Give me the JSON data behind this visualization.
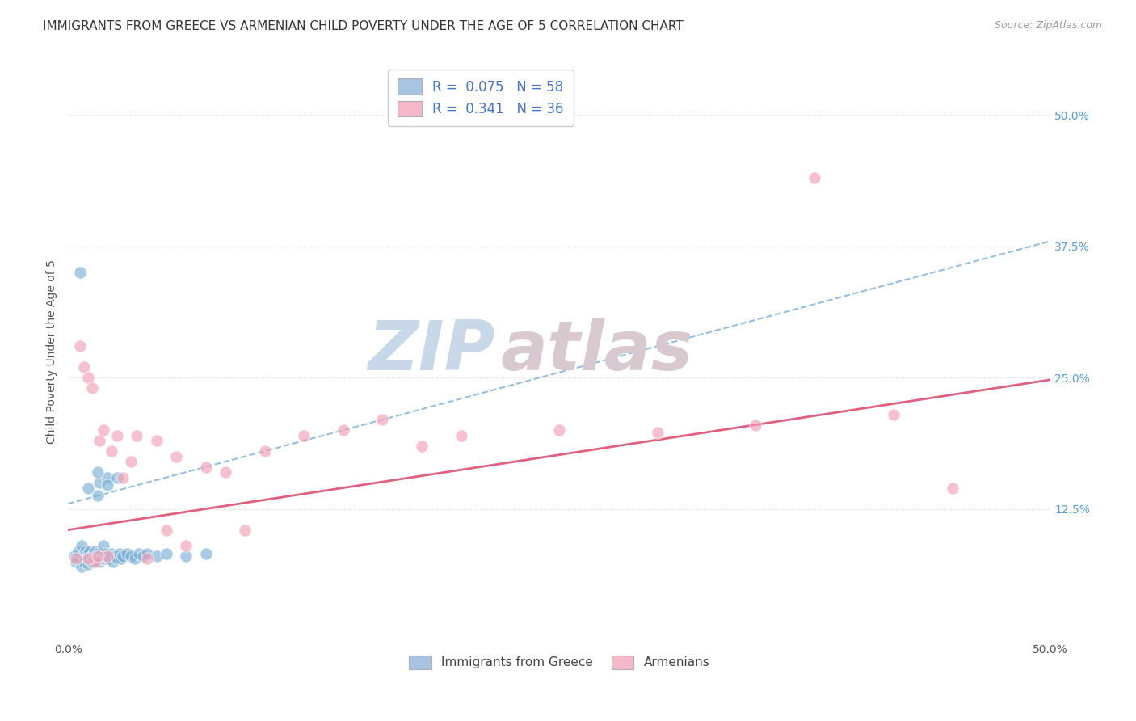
{
  "title": "IMMIGRANTS FROM GREECE VS ARMENIAN CHILD POVERTY UNDER THE AGE OF 5 CORRELATION CHART",
  "source": "Source: ZipAtlas.com",
  "ylabel": "Child Poverty Under the Age of 5",
  "xlim": [
    0.0,
    0.5
  ],
  "ylim": [
    0.0,
    0.55
  ],
  "xticks": [
    0.0,
    0.1,
    0.2,
    0.3,
    0.4,
    0.5
  ],
  "xticklabels": [
    "0.0%",
    "",
    "",
    "",
    "",
    "50.0%"
  ],
  "yticks": [
    0.0,
    0.125,
    0.25,
    0.375,
    0.5
  ],
  "ylabels_right": [
    "",
    "12.5%",
    "25.0%",
    "37.5%",
    "50.0%"
  ],
  "blue_scatter_x": [
    0.003,
    0.004,
    0.005,
    0.006,
    0.007,
    0.007,
    0.008,
    0.008,
    0.009,
    0.009,
    0.01,
    0.01,
    0.01,
    0.011,
    0.011,
    0.012,
    0.012,
    0.013,
    0.013,
    0.014,
    0.014,
    0.015,
    0.015,
    0.015,
    0.016,
    0.016,
    0.016,
    0.017,
    0.017,
    0.018,
    0.018,
    0.019,
    0.019,
    0.02,
    0.02,
    0.021,
    0.022,
    0.022,
    0.023,
    0.024,
    0.025,
    0.025,
    0.026,
    0.027,
    0.028,
    0.03,
    0.032,
    0.034,
    0.036,
    0.038,
    0.04,
    0.045,
    0.05,
    0.06,
    0.07,
    0.01,
    0.015,
    0.02
  ],
  "blue_scatter_y": [
    0.08,
    0.075,
    0.085,
    0.35,
    0.07,
    0.09,
    0.08,
    0.075,
    0.085,
    0.078,
    0.082,
    0.078,
    0.072,
    0.078,
    0.085,
    0.08,
    0.075,
    0.082,
    0.078,
    0.08,
    0.085,
    0.078,
    0.082,
    0.138,
    0.08,
    0.075,
    0.15,
    0.082,
    0.078,
    0.08,
    0.09,
    0.078,
    0.082,
    0.08,
    0.155,
    0.078,
    0.082,
    0.08,
    0.075,
    0.08,
    0.078,
    0.155,
    0.082,
    0.078,
    0.08,
    0.082,
    0.08,
    0.078,
    0.082,
    0.08,
    0.082,
    0.08,
    0.082,
    0.08,
    0.082,
    0.145,
    0.16,
    0.148
  ],
  "pink_scatter_x": [
    0.004,
    0.006,
    0.008,
    0.01,
    0.012,
    0.014,
    0.016,
    0.018,
    0.02,
    0.022,
    0.025,
    0.028,
    0.032,
    0.035,
    0.04,
    0.045,
    0.05,
    0.055,
    0.06,
    0.07,
    0.08,
    0.09,
    0.1,
    0.12,
    0.14,
    0.16,
    0.18,
    0.2,
    0.25,
    0.3,
    0.35,
    0.38,
    0.42,
    0.45,
    0.01,
    0.015
  ],
  "pink_scatter_y": [
    0.078,
    0.28,
    0.26,
    0.25,
    0.24,
    0.075,
    0.19,
    0.2,
    0.08,
    0.18,
    0.195,
    0.155,
    0.17,
    0.195,
    0.078,
    0.19,
    0.105,
    0.175,
    0.09,
    0.165,
    0.16,
    0.105,
    0.18,
    0.195,
    0.2,
    0.21,
    0.185,
    0.195,
    0.2,
    0.198,
    0.205,
    0.44,
    0.215,
    0.145,
    0.078,
    0.08
  ],
  "blue_line_x": [
    0.0,
    0.5
  ],
  "blue_line_y": [
    0.13,
    0.38
  ],
  "pink_line_x": [
    0.0,
    0.5
  ],
  "pink_line_y": [
    0.105,
    0.248
  ],
  "background_color": "#ffffff",
  "grid_color": "#d8d8d8",
  "scatter_blue": "#7bafd4",
  "scatter_pink": "#f0a0b8",
  "line_blue": "#7bafd4",
  "line_pink": "#e06080",
  "title_fontsize": 11,
  "axis_fontsize": 10,
  "tick_fontsize": 10,
  "watermark_zip_color": "#c8d8e8",
  "watermark_atlas_color": "#d8c8d0"
}
